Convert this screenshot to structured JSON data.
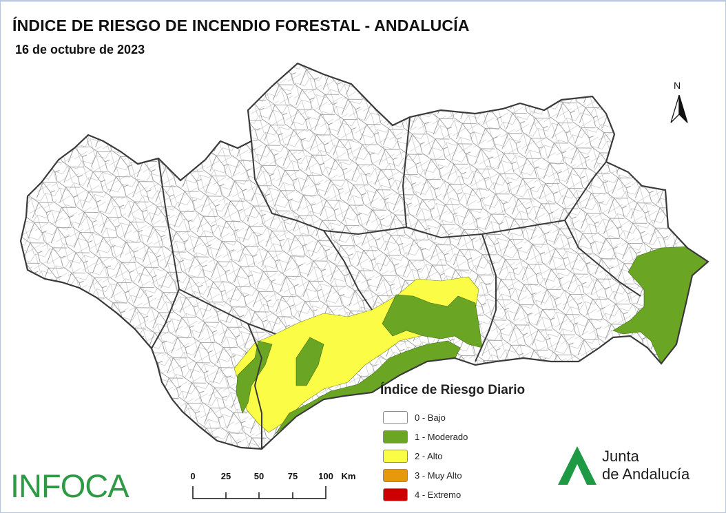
{
  "map": {
    "title": "ÍNDICE DE RIESGO DE INCENDIO FORESTAL - ANDALUCÍA",
    "date": "16 de octubre de 2023",
    "north_label": "N"
  },
  "legend": {
    "title": "Índice de Riesgo Diario",
    "items": [
      {
        "label": "0 - Bajo",
        "color": "#ffffff"
      },
      {
        "label": "1 - Moderado",
        "color": "#6aa624"
      },
      {
        "label": "2 - Alto",
        "color": "#fafc45"
      },
      {
        "label": "3 - Muy Alto",
        "color": "#e5990b"
      },
      {
        "label": "4 - Extremo",
        "color": "#cc0000"
      }
    ]
  },
  "scale": {
    "ticks": [
      "0",
      "25",
      "50",
      "75",
      "100"
    ],
    "unit": "Km"
  },
  "logos": {
    "infoca": "INFOCA",
    "junta_line1": "Junta",
    "junta_line2": "de Andalucía",
    "junta_color": "#1e9a45"
  },
  "colors": {
    "border": "#3a3a3a",
    "municipality_line": "#7a7a7a"
  }
}
